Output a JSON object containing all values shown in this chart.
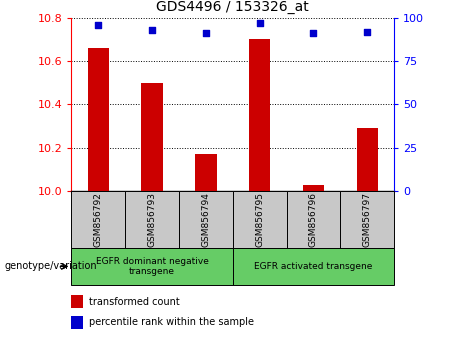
{
  "title": "GDS4496 / 153326_at",
  "samples": [
    "GSM856792",
    "GSM856793",
    "GSM856794",
    "GSM856795",
    "GSM856796",
    "GSM856797"
  ],
  "bar_values": [
    10.66,
    10.5,
    10.17,
    10.7,
    10.03,
    10.29
  ],
  "scatter_values": [
    96,
    93,
    91,
    97,
    91,
    92
  ],
  "bar_color": "#cc0000",
  "scatter_color": "#0000cc",
  "ylim_left": [
    10.0,
    10.8
  ],
  "ylim_right": [
    0,
    100
  ],
  "yticks_left": [
    10.0,
    10.2,
    10.4,
    10.6,
    10.8
  ],
  "yticks_right": [
    0,
    25,
    50,
    75,
    100
  ],
  "group1_label": "EGFR dominant negative\ntransgene",
  "group2_label": "EGFR activated transgene",
  "group_bg_color": "#66cc66",
  "sample_bg_color": "#c8c8c8",
  "legend_bar_label": "transformed count",
  "legend_scatter_label": "percentile rank within the sample",
  "xlabel_left": "genotype/variation",
  "bar_width": 0.4
}
